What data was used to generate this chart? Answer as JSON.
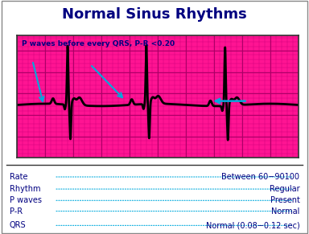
{
  "title": "Normal Sinus Rhythms",
  "title_bg": "#FFD700",
  "title_color": "#000080",
  "ecg_bg": "#FF1493",
  "grid_minor_color": "#CC007A",
  "grid_major_color": "#AA0066",
  "outer_bg": "#FFFFFF",
  "annotation_text": "P waves before every QRS, P-R <0.20",
  "annotation_color": "#000080",
  "arrow_color": "#00AADD",
  "ecg_color": "#000000",
  "info_label_color": "#000080",
  "info_value_color": "#000080",
  "info_dot_color": "#00AADD",
  "border_color": "#888888",
  "info_rows": [
    [
      "Rate",
      "Between 60−90100"
    ],
    [
      "Rhythm",
      "Regular"
    ],
    [
      "P waves",
      "Present"
    ],
    [
      "P-R",
      "Normal"
    ],
    [
      "QRS",
      "Normal (0.08−0.12 sec)"
    ]
  ]
}
